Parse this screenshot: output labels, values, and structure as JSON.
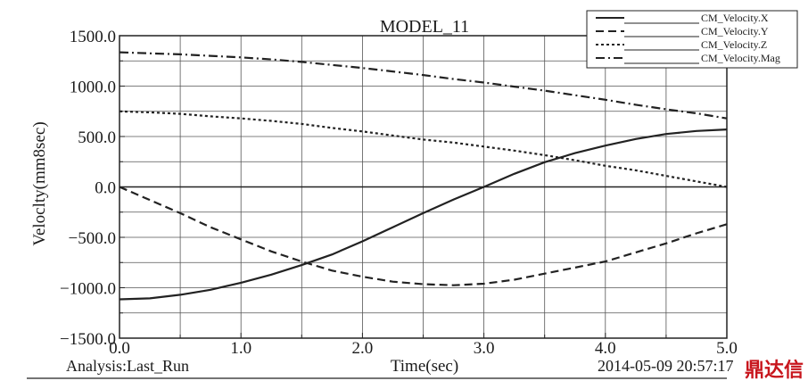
{
  "chart_data": {
    "type": "line",
    "title": "MODEL_11",
    "xlabel": "Time(sec)",
    "ylabel": "Veloclty(mm8sec)",
    "xlim": [
      0.0,
      5.0
    ],
    "ylim": [
      -1500.0,
      1500.0
    ],
    "x_ticks": [
      "0.0",
      "1.0",
      "2.0",
      "3.0",
      "4.0",
      "5.0"
    ],
    "y_ticks": [
      "1500.0",
      "1000.0",
      "500.0",
      "0.0",
      "-500.0",
      "-1000.0",
      "-1500.0"
    ],
    "grid": true,
    "legend_position": "top-right",
    "x": [
      0.0,
      0.25,
      0.5,
      0.75,
      1.0,
      1.25,
      1.5,
      1.75,
      2.0,
      2.25,
      2.5,
      2.75,
      3.0,
      3.25,
      3.5,
      3.75,
      4.0,
      4.25,
      4.5,
      4.75,
      5.0
    ],
    "series": [
      {
        "name": "CM_Velocity.X",
        "style": "solid",
        "values": [
          -1115,
          -1105,
          -1070,
          -1020,
          -950,
          -870,
          -775,
          -670,
          -540,
          -400,
          -260,
          -125,
          0,
          130,
          245,
          335,
          410,
          475,
          525,
          555,
          570
        ]
      },
      {
        "name": "CM_Velocity.Y",
        "style": "dashed",
        "values": [
          0,
          -130,
          -260,
          -400,
          -520,
          -640,
          -740,
          -830,
          -890,
          -940,
          -965,
          -975,
          -960,
          -920,
          -860,
          -800,
          -740,
          -650,
          -560,
          -460,
          -370
        ]
      },
      {
        "name": "CM_Velocity.Z",
        "style": "dotted",
        "values": [
          750,
          740,
          725,
          700,
          680,
          655,
          625,
          585,
          550,
          510,
          470,
          440,
          400,
          360,
          315,
          265,
          210,
          165,
          110,
          55,
          0
        ]
      },
      {
        "name": "CM_Velocity.Mag",
        "style": "dashdot",
        "values": [
          1335,
          1325,
          1315,
          1300,
          1285,
          1265,
          1240,
          1210,
          1180,
          1145,
          1110,
          1070,
          1035,
          995,
          955,
          910,
          865,
          815,
          770,
          730,
          680
        ]
      }
    ],
    "annotations": {
      "analysis": "Analysis:Last_Run",
      "timestamp": "2014-05-09 20:57:17"
    }
  },
  "watermark": "鼎达信",
  "colors": {
    "line": "#222222",
    "grid": "#555555",
    "watermark": "#c8161d"
  }
}
